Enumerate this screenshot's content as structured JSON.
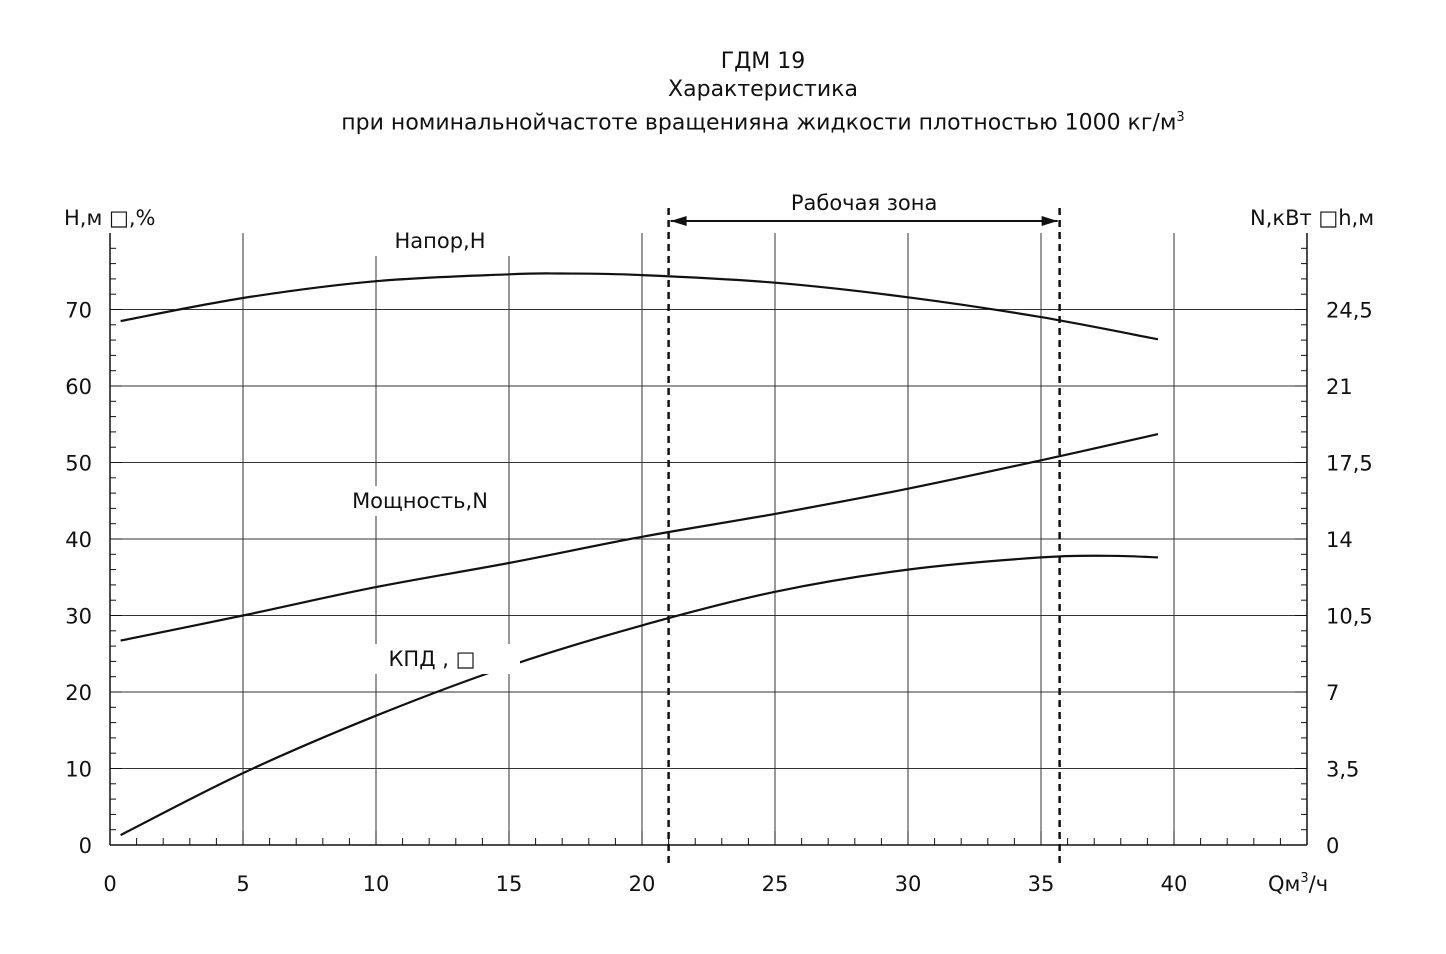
{
  "chart_data": {
    "type": "line",
    "title": "ГДМ 19",
    "subtitle_1": "Характеристика",
    "subtitle_2": "при номинальнойчастоте вращенияна жидкости плотностью 1000 кг/м",
    "subtitle_2_sup": "3",
    "xlabel": "Qм",
    "xlabel_sup": "3",
    "xlabel_tail": "/ч",
    "ylabel_left": "H,м □,%",
    "ylabel_right": "N,кВт □h,м",
    "xlim": [
      0,
      45
    ],
    "ylim_left": [
      0,
      80
    ],
    "ylim_right": [
      0,
      28
    ],
    "x_ticks": [
      0,
      5,
      10,
      15,
      20,
      25,
      30,
      35,
      40
    ],
    "y_ticks_left": [
      0,
      10,
      20,
      30,
      40,
      50,
      60,
      70
    ],
    "y_ticks_right": [
      "0",
      "3,5",
      "7",
      "10,5",
      "14",
      "17,5",
      "21",
      "24,5"
    ],
    "working_zone": {
      "label": "Рабочая зона",
      "from": 21,
      "to": 35.7
    },
    "grid": true,
    "series": [
      {
        "name": "Напор,Н",
        "axis": "left",
        "x": [
          0.4,
          5,
          10,
          15,
          17,
          20,
          25,
          30,
          35,
          39.4
        ],
        "y": [
          68.5,
          71.5,
          73.7,
          74.6,
          74.7,
          74.5,
          73.5,
          71.6,
          69.0,
          66.1
        ]
      },
      {
        "name": "Мощность,N",
        "axis": "right",
        "x": [
          0.4,
          5,
          10,
          15,
          20,
          25,
          30,
          35,
          39.4
        ],
        "y": [
          9.35,
          10.5,
          11.8,
          12.9,
          14.1,
          15.15,
          16.3,
          17.6,
          18.8
        ]
      },
      {
        "name": "КПД , □",
        "axis": "left",
        "x": [
          0.4,
          5,
          10,
          15,
          20,
          25,
          30,
          35,
          37.5,
          39.4
        ],
        "y": [
          1.3,
          9.4,
          16.9,
          23.4,
          28.7,
          33.1,
          36.0,
          37.6,
          37.8,
          37.6
        ]
      }
    ]
  }
}
